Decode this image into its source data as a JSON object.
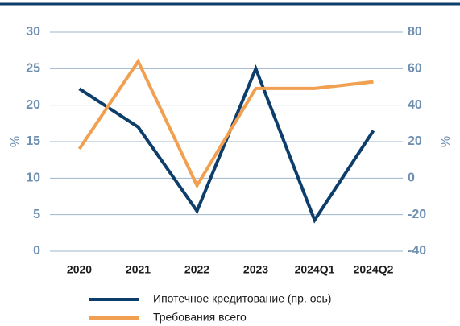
{
  "chart_data": {
    "type": "line",
    "categories": [
      "2020",
      "2021",
      "2022",
      "2023",
      "2024Q1",
      "2024Q2"
    ],
    "series": [
      {
        "name": "Ипотечное кредитование (пр. ось)",
        "color": "#0d3e6b",
        "axis": "y2",
        "values": [
          49,
          28,
          -18,
          60,
          -23,
          26
        ]
      },
      {
        "name": "Требования всего",
        "color": "#f0a050",
        "values": [
          14,
          26,
          9,
          22.3,
          22.3,
          23.2
        ]
      }
    ],
    "ylabel": "%",
    "y2label": "%",
    "ylim": [
      0,
      30
    ],
    "yticks": [
      0,
      5,
      10,
      15,
      20,
      25,
      30
    ],
    "y2lim": [
      -40,
      80
    ],
    "y2ticks": [
      -40,
      -20,
      0,
      20,
      40,
      60,
      80
    ],
    "grid": true
  }
}
